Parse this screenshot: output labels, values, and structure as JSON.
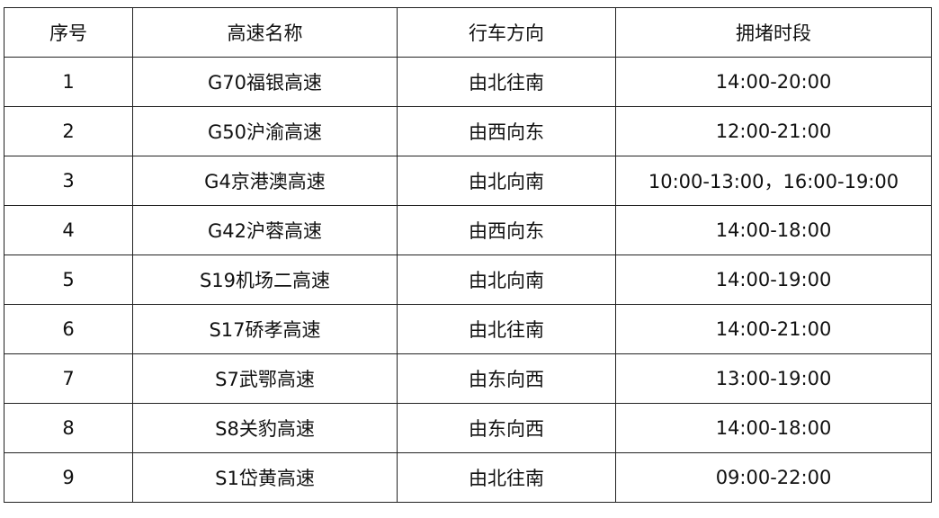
{
  "table": {
    "headers": [
      "序号",
      "高速名称",
      "行车方向",
      "拥堵时段"
    ],
    "rows": [
      [
        "1",
        "G70福银高速",
        "由北往南",
        "14:00-20:00"
      ],
      [
        "2",
        "G50沪渝高速",
        "由西向东",
        "12:00-21:00"
      ],
      [
        "3",
        "G4京港澳高速",
        "由北向南",
        "10:00-13:00，16:00-19:00"
      ],
      [
        "4",
        "G42沪蓉高速",
        "由西向东",
        "14:00-18:00"
      ],
      [
        "5",
        "S19机场二高速",
        "由北向南",
        "14:00-19:00"
      ],
      [
        "6",
        "S17硚孝高速",
        "由北往南",
        "14:00-21:00"
      ],
      [
        "7",
        "S7武鄂高速",
        "由东向西",
        "13:00-19:00"
      ],
      [
        "8",
        "S8关豹高速",
        "由东向西",
        "14:00-18:00"
      ],
      [
        "9",
        "S1岱黄高速",
        "由北往南",
        "09:00-22:00"
      ]
    ]
  }
}
